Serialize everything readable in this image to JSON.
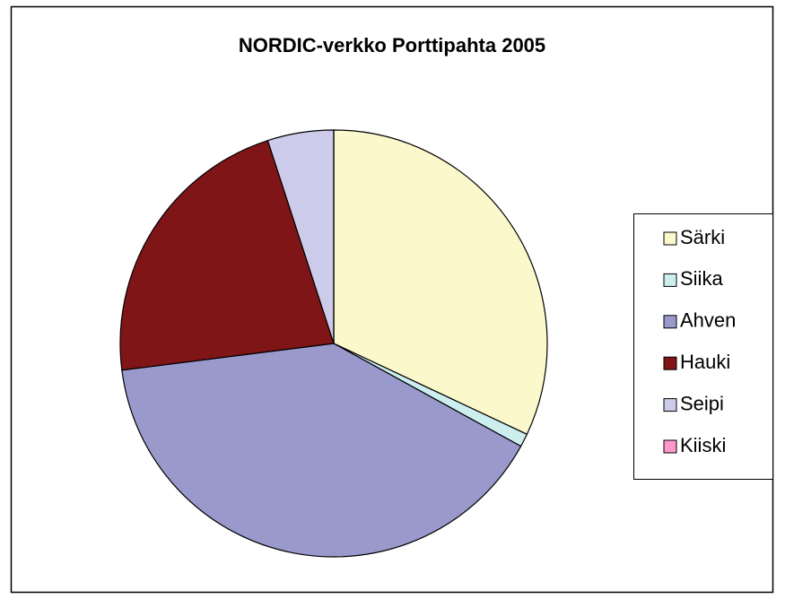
{
  "chart_data": {
    "type": "pie",
    "title": "NORDIC-verkko Porttipahta 2005",
    "categories": [
      "Särki",
      "Siika",
      "Ahven",
      "Hauki",
      "Seipi",
      "Kiiski"
    ],
    "values": [
      32,
      1,
      40,
      22,
      5,
      0
    ],
    "colors": [
      "#fbf8cc",
      "#cceeee",
      "#9999cc",
      "#7f1517",
      "#ccccea",
      "#ff99cc"
    ],
    "legend": "right"
  }
}
